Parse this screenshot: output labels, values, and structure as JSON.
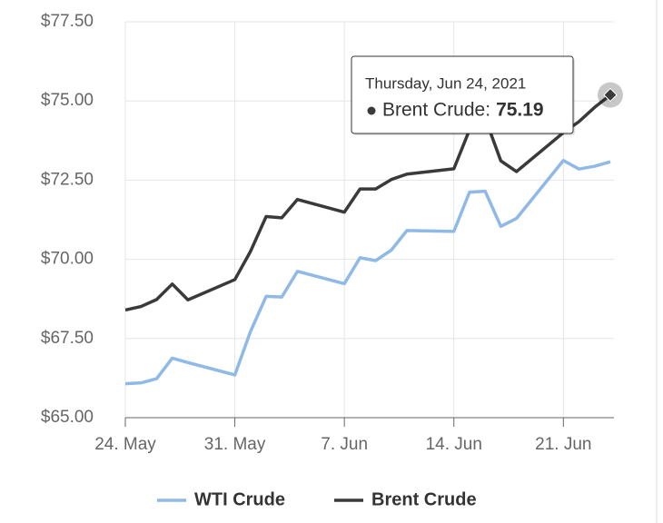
{
  "chart_data": {
    "type": "line",
    "x": [
      "2021-05-24",
      "2021-05-25",
      "2021-05-26",
      "2021-05-27",
      "2021-05-28",
      "2021-05-31",
      "2021-06-01",
      "2021-06-02",
      "2021-06-03",
      "2021-06-04",
      "2021-06-07",
      "2021-06-08",
      "2021-06-09",
      "2021-06-10",
      "2021-06-11",
      "2021-06-14",
      "2021-06-15",
      "2021-06-16",
      "2021-06-17",
      "2021-06-18",
      "2021-06-21",
      "2021-06-22",
      "2021-06-23",
      "2021-06-24"
    ],
    "series": [
      {
        "name": "WTI Crude",
        "color": "#8fb9e7",
        "values": [
          66.07,
          66.1,
          66.23,
          66.88,
          66.74,
          66.35,
          67.72,
          68.83,
          68.81,
          69.62,
          69.23,
          70.05,
          69.96,
          70.29,
          70.91,
          70.88,
          72.12,
          72.15,
          71.04,
          71.29,
          73.12,
          72.85,
          72.94,
          73.08
        ]
      },
      {
        "name": "Brent Crude",
        "color": "#3a3a3a",
        "values": [
          68.4,
          68.51,
          68.73,
          69.22,
          68.72,
          69.36,
          70.25,
          71.35,
          71.31,
          71.89,
          71.49,
          72.22,
          72.22,
          72.52,
          72.69,
          72.86,
          74.09,
          74.46,
          73.11,
          72.77,
          74.0,
          74.35,
          74.8,
          75.19
        ]
      }
    ],
    "xlim": [
      "2021-05-24",
      "2021-06-24"
    ],
    "xticks": [
      {
        "value": "2021-05-24",
        "label": "24. May"
      },
      {
        "value": "2021-05-31",
        "label": "31. May"
      },
      {
        "value": "2021-06-07",
        "label": "7. Jun"
      },
      {
        "value": "2021-06-14",
        "label": "14. Jun"
      },
      {
        "value": "2021-06-21",
        "label": "21. Jun"
      }
    ],
    "ylim": [
      65,
      77.5
    ],
    "yticks": [
      {
        "value": 65,
        "label": "$65.00"
      },
      {
        "value": 67.5,
        "label": "$67.50"
      },
      {
        "value": 70,
        "label": "$70.00"
      },
      {
        "value": 72.5,
        "label": "$72.50"
      },
      {
        "value": 75,
        "label": "$75.00"
      },
      {
        "value": 77.5,
        "label": "$77.50"
      }
    ],
    "grid": true,
    "legend": "bottom",
    "tooltip": {
      "header": "Thursday, Jun 24, 2021",
      "label": "Brent Crude:",
      "value": 75.19
    }
  }
}
